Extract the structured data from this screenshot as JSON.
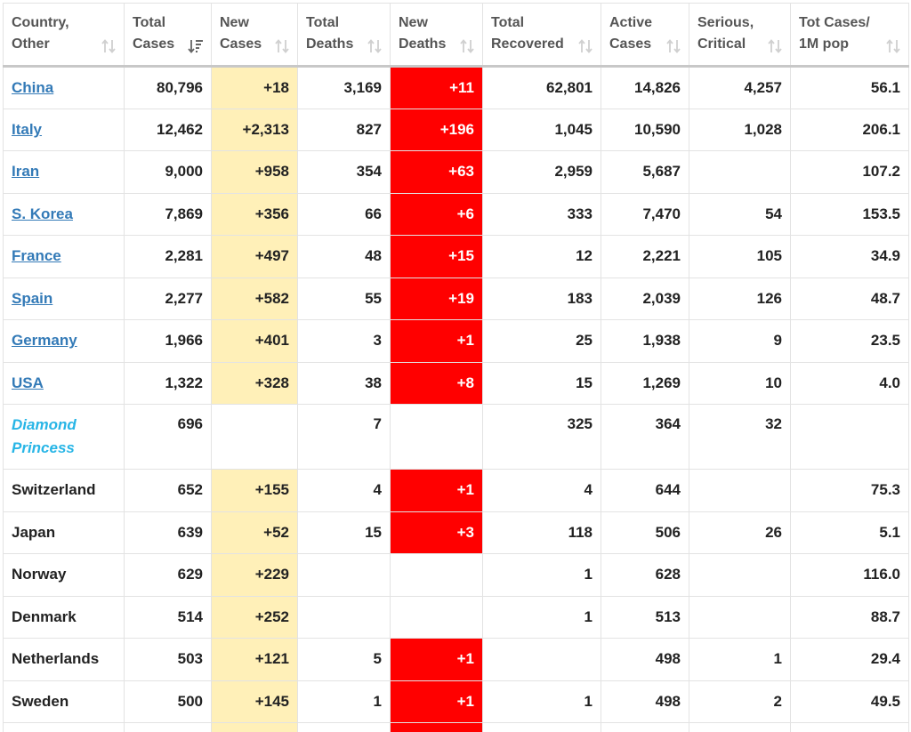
{
  "headers": [
    {
      "line1": "Country,",
      "line2": "Other",
      "sort": "unsorted"
    },
    {
      "line1": "Total",
      "line2": "Cases",
      "sort": "desc"
    },
    {
      "line1": "New",
      "line2": "Cases",
      "sort": "unsorted"
    },
    {
      "line1": "Total",
      "line2": "Deaths",
      "sort": "unsorted"
    },
    {
      "line1": "New",
      "line2": "Deaths",
      "sort": "unsorted"
    },
    {
      "line1": "Total",
      "line2": "Recovered",
      "sort": "unsorted"
    },
    {
      "line1": "Active",
      "line2": "Cases",
      "sort": "unsorted"
    },
    {
      "line1": "Serious,",
      "line2": "Critical",
      "sort": "unsorted"
    },
    {
      "line1": "Tot Cases/",
      "line2": "1M pop",
      "sort": "unsorted"
    }
  ],
  "colors": {
    "new_cases_bg": "#fff0b8",
    "new_deaths_bg": "#ff0000",
    "link": "#337ab7",
    "special": "#27b5e6"
  },
  "rows": [
    {
      "country": "China",
      "style": "link",
      "total_cases": "80,796",
      "new_cases": "+18",
      "total_deaths": "3,169",
      "new_deaths": "+11",
      "total_recovered": "62,801",
      "active_cases": "14,826",
      "serious_critical": "4,257",
      "tot_cases_1m": "56.1"
    },
    {
      "country": "Italy",
      "style": "link",
      "total_cases": "12,462",
      "new_cases": "+2,313",
      "total_deaths": "827",
      "new_deaths": "+196",
      "total_recovered": "1,045",
      "active_cases": "10,590",
      "serious_critical": "1,028",
      "tot_cases_1m": "206.1"
    },
    {
      "country": "Iran",
      "style": "link",
      "total_cases": "9,000",
      "new_cases": "+958",
      "total_deaths": "354",
      "new_deaths": "+63",
      "total_recovered": "2,959",
      "active_cases": "5,687",
      "serious_critical": "",
      "tot_cases_1m": "107.2"
    },
    {
      "country": "S. Korea",
      "style": "link",
      "total_cases": "7,869",
      "new_cases": "+356",
      "total_deaths": "66",
      "new_deaths": "+6",
      "total_recovered": "333",
      "active_cases": "7,470",
      "serious_critical": "54",
      "tot_cases_1m": "153.5"
    },
    {
      "country": "France",
      "style": "link",
      "total_cases": "2,281",
      "new_cases": "+497",
      "total_deaths": "48",
      "new_deaths": "+15",
      "total_recovered": "12",
      "active_cases": "2,221",
      "serious_critical": "105",
      "tot_cases_1m": "34.9"
    },
    {
      "country": "Spain",
      "style": "link",
      "total_cases": "2,277",
      "new_cases": "+582",
      "total_deaths": "55",
      "new_deaths": "+19",
      "total_recovered": "183",
      "active_cases": "2,039",
      "serious_critical": "126",
      "tot_cases_1m": "48.7"
    },
    {
      "country": "Germany",
      "style": "link",
      "total_cases": "1,966",
      "new_cases": "+401",
      "total_deaths": "3",
      "new_deaths": "+1",
      "total_recovered": "25",
      "active_cases": "1,938",
      "serious_critical": "9",
      "tot_cases_1m": "23.5"
    },
    {
      "country": "USA",
      "style": "link",
      "total_cases": "1,322",
      "new_cases": "+328",
      "total_deaths": "38",
      "new_deaths": "+8",
      "total_recovered": "15",
      "active_cases": "1,269",
      "serious_critical": "10",
      "tot_cases_1m": "4.0"
    },
    {
      "country": "Diamond Princess",
      "style": "special",
      "total_cases": "696",
      "new_cases": "",
      "total_deaths": "7",
      "new_deaths": "",
      "total_recovered": "325",
      "active_cases": "364",
      "serious_critical": "32",
      "tot_cases_1m": ""
    },
    {
      "country": "Switzerland",
      "style": "plain",
      "total_cases": "652",
      "new_cases": "+155",
      "total_deaths": "4",
      "new_deaths": "+1",
      "total_recovered": "4",
      "active_cases": "644",
      "serious_critical": "",
      "tot_cases_1m": "75.3"
    },
    {
      "country": "Japan",
      "style": "plain",
      "total_cases": "639",
      "new_cases": "+52",
      "total_deaths": "15",
      "new_deaths": "+3",
      "total_recovered": "118",
      "active_cases": "506",
      "serious_critical": "26",
      "tot_cases_1m": "5.1"
    },
    {
      "country": "Norway",
      "style": "plain",
      "total_cases": "629",
      "new_cases": "+229",
      "total_deaths": "",
      "new_deaths": "",
      "total_recovered": "1",
      "active_cases": "628",
      "serious_critical": "",
      "tot_cases_1m": "116.0"
    },
    {
      "country": "Denmark",
      "style": "plain",
      "total_cases": "514",
      "new_cases": "+252",
      "total_deaths": "",
      "new_deaths": "",
      "total_recovered": "1",
      "active_cases": "513",
      "serious_critical": "",
      "tot_cases_1m": "88.7"
    },
    {
      "country": "Netherlands",
      "style": "plain",
      "total_cases": "503",
      "new_cases": "+121",
      "total_deaths": "5",
      "new_deaths": "+1",
      "total_recovered": "",
      "active_cases": "498",
      "serious_critical": "1",
      "tot_cases_1m": "29.4"
    },
    {
      "country": "Sweden",
      "style": "plain",
      "total_cases": "500",
      "new_cases": "+145",
      "total_deaths": "1",
      "new_deaths": "+1",
      "total_recovered": "1",
      "active_cases": "498",
      "serious_critical": "2",
      "tot_cases_1m": "49.5"
    }
  ],
  "partial_row": {
    "new_cases_highlight": true,
    "new_deaths_highlight": true
  }
}
